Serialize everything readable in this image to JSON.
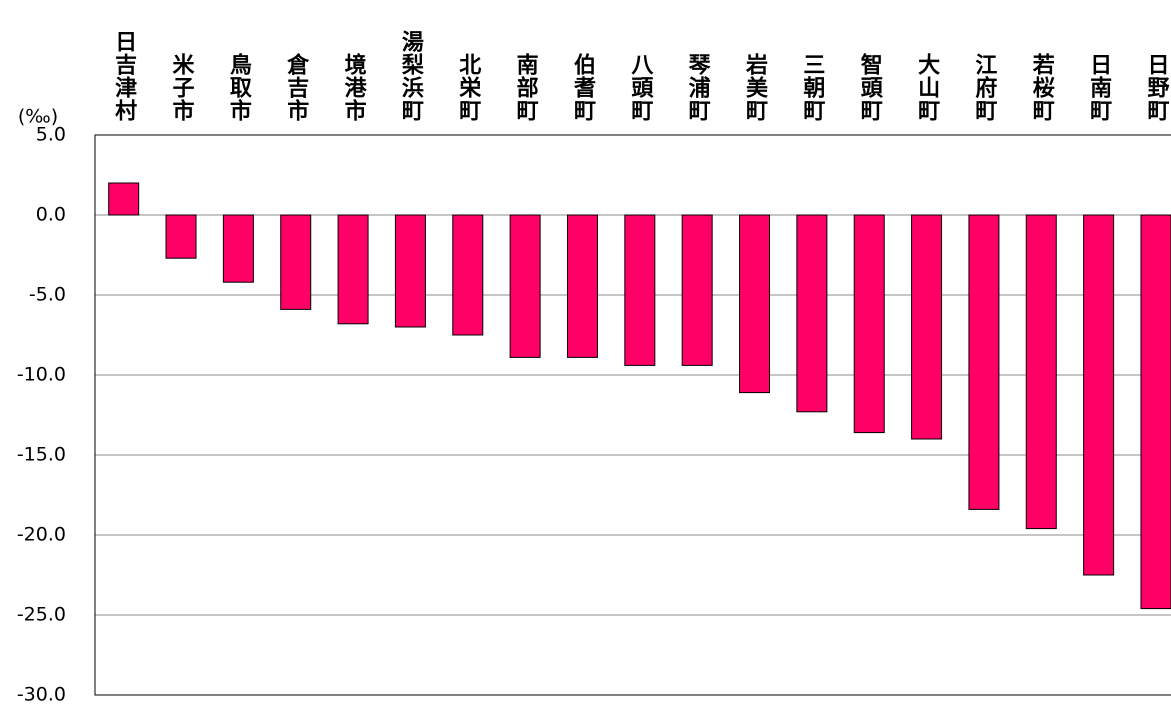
{
  "chart_data": {
    "type": "bar",
    "y_label": "(‰)",
    "categories": [
      "日吉津村",
      "米子市",
      "鳥取市",
      "倉吉市",
      "境港市",
      "湯梨浜町",
      "北栄町",
      "南部町",
      "伯耆町",
      "八頭町",
      "琴浦町",
      "岩美町",
      "三朝町",
      "智頭町",
      "大山町",
      "江府町",
      "若桜町",
      "日南町",
      "日野町"
    ],
    "values": [
      2.0,
      -2.7,
      -4.2,
      -5.9,
      -6.8,
      -7.0,
      -7.5,
      -8.9,
      -8.9,
      -9.4,
      -9.4,
      -11.1,
      -12.3,
      -13.6,
      -14.0,
      -18.4,
      -19.6,
      -22.5,
      -24.6
    ],
    "color": "#ff0066",
    "ylim": [
      -30,
      5
    ],
    "yticks": [
      {
        "value": -30,
        "label": "-30.0"
      },
      {
        "value": -25,
        "label": "-25.0"
      },
      {
        "value": -20,
        "label": "-20.0"
      },
      {
        "value": -15,
        "label": "-15.0"
      },
      {
        "value": -10,
        "label": "-10.0"
      },
      {
        "value": -5,
        "label": "-5.0"
      },
      {
        "value": 0,
        "label": "0.0"
      },
      {
        "value": 5,
        "label": "5.0"
      }
    ],
    "grid": true
  }
}
